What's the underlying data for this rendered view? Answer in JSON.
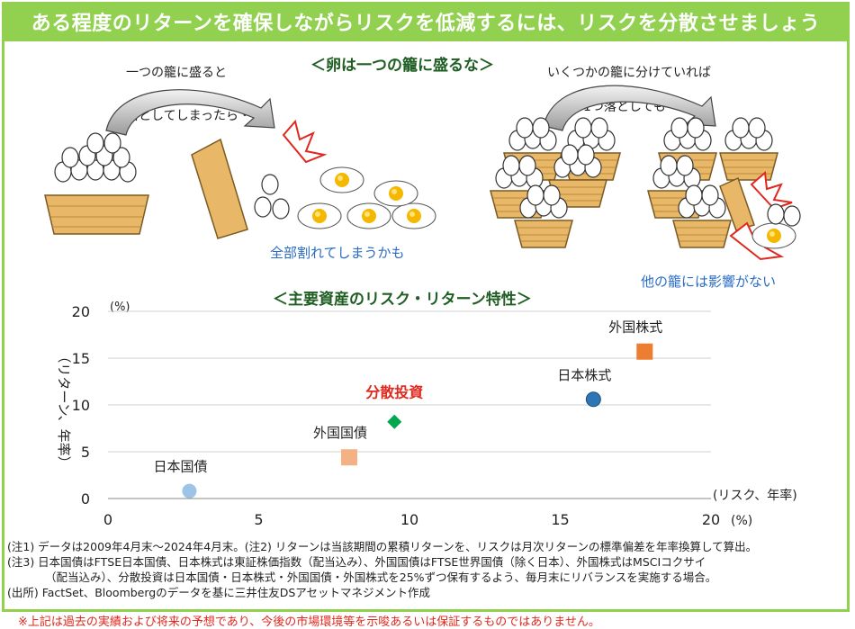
{
  "header": {
    "title": "ある程度のリターンを確保しながらリスクを低減するには、リスクを分散させましょう"
  },
  "illustration": {
    "title": "＜卵は一つの籠に盛るな＞",
    "left_caption_1": "一つの籠に盛ると",
    "left_caption_2": "落としてしまったら・・・",
    "left_result": "全部割れてしまうかも",
    "right_caption_1": "いくつかの籠に分けていれば",
    "right_caption_2": "1つ落としても・・・",
    "right_result": "他の籠には影響がない"
  },
  "chart_data": {
    "type": "scatter",
    "title": "＜主要資産のリスク・リターン特性＞",
    "ylabel": "（リターン、年率）",
    "y_unit": "(%)",
    "xlabel": "(リスク、年率)",
    "x_unit": "(%)",
    "xlim": [
      0,
      20
    ],
    "ylim": [
      0,
      20
    ],
    "x_ticks": [
      "0",
      "5",
      "10",
      "15",
      "20"
    ],
    "y_ticks": [
      "0",
      "5",
      "10",
      "15",
      "20"
    ],
    "grid": "horizontal",
    "points": [
      {
        "label": "日本国債",
        "x": 2.7,
        "y": 0.8,
        "color": "#9dc3e6",
        "shape": "circle"
      },
      {
        "label": "外国国債",
        "x": 8.0,
        "y": 4.4,
        "color": "#f4b183",
        "shape": "square"
      },
      {
        "label": "分散投資",
        "x": 9.5,
        "y": 8.2,
        "color": "#00a650",
        "shape": "diamond"
      },
      {
        "label": "日本株式",
        "x": 16.1,
        "y": 10.6,
        "color": "#2e75b6",
        "shape": "circle"
      },
      {
        "label": "外国株式",
        "x": 17.8,
        "y": 15.7,
        "color": "#ed7d31",
        "shape": "square"
      }
    ]
  },
  "notes": [
    "(注1) データは2009年4月末～2024年4月末。(注2) リターンは当該期間の累積リターンを、リスクは月次リターンの標準偏差を年率換算して算出。",
    "(注3) 日本国債はFTSE日本国債、日本株式は東証株価指数（配当込み）、外国国債はFTSE世界国債（除く日本）、外国株式はMSCIコクサイ",
    "（配当込み）、分散投資は日本国債・日本株式・外国国債・外国株式を25%ずつ保有するよう、毎月末にリバランスを実施する場合。",
    "(出所) FactSet、Bloombergのデータを基に三井住友DSアセットマネジメント作成"
  ],
  "disclaimer": "※上記は過去の実績および将来の予想であり、今後の市場環境等を示唆あるいは保証するものではありません。"
}
